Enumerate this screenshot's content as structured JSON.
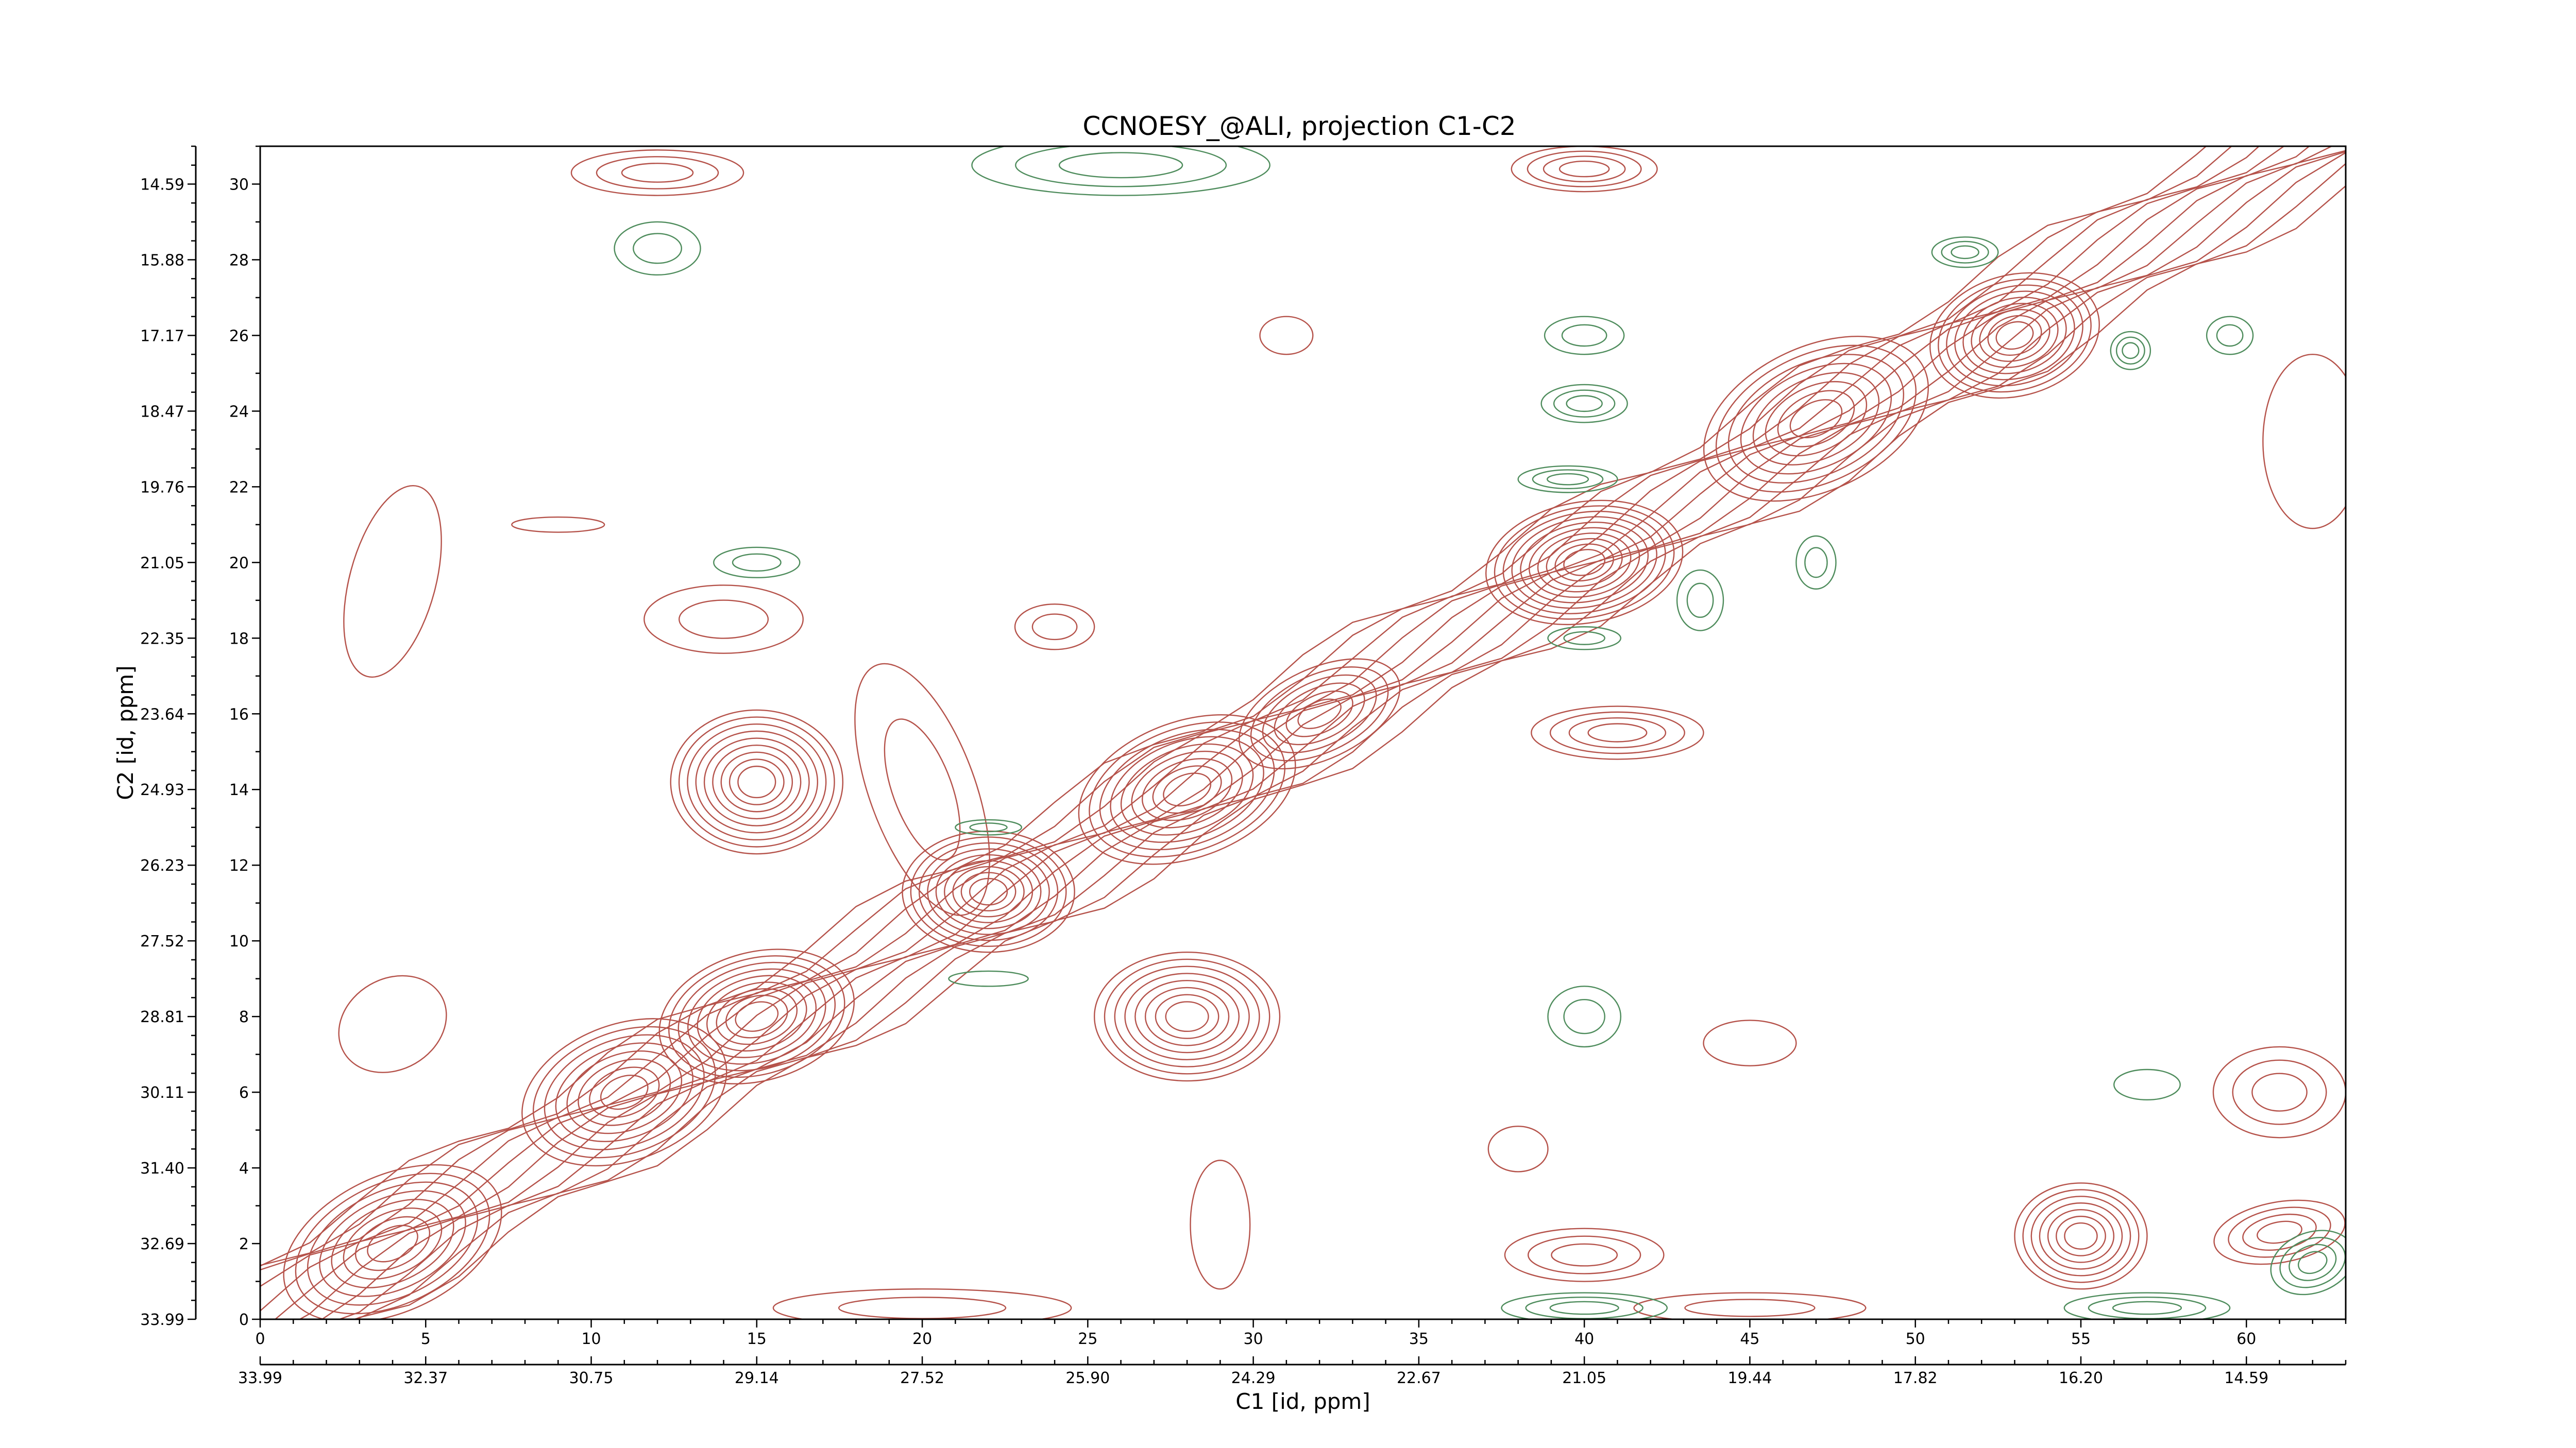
{
  "chart_data": {
    "type": "contour",
    "title": "CCNOESY_@ALI, projection C1-C2",
    "xlabel": "C1 [id, ppm]",
    "ylabel": "C2 [id, ppm]",
    "x_index_range": [
      0,
      63
    ],
    "y_index_range": [
      0,
      31
    ],
    "x_index_ticks": [
      "0",
      "5",
      "10",
      "15",
      "20",
      "25",
      "30",
      "35",
      "40",
      "45",
      "50",
      "55",
      "60"
    ],
    "x_ppm_ticks": [
      "33.99",
      "32.37",
      "30.75",
      "29.14",
      "27.52",
      "25.90",
      "24.29",
      "22.67",
      "21.05",
      "19.44",
      "17.82",
      "16.20",
      "14.59"
    ],
    "y_index_ticks": [
      "0",
      "2",
      "4",
      "6",
      "8",
      "10",
      "12",
      "14",
      "16",
      "18",
      "20",
      "22",
      "24",
      "26",
      "28",
      "30"
    ],
    "y_ppm_ticks": [
      "33.99",
      "32.69",
      "31.40",
      "30.11",
      "28.81",
      "27.52",
      "26.23",
      "24.93",
      "23.64",
      "22.35",
      "21.05",
      "19.76",
      "18.47",
      "17.17",
      "15.88",
      "14.59"
    ],
    "colors": {
      "positive": "#b5524a",
      "negative": "#4e8c5c"
    },
    "positive_peaks": [
      {
        "x": 4,
        "y": 2,
        "rx": 3.5,
        "ry": 1.8,
        "levels": 8,
        "angle": -25
      },
      {
        "x": 11,
        "y": 6,
        "rx": 3.2,
        "ry": 1.8,
        "levels": 8,
        "angle": -20
      },
      {
        "x": 15,
        "y": 8,
        "rx": 3.0,
        "ry": 1.7,
        "levels": 9,
        "angle": -15
      },
      {
        "x": 15,
        "y": 14.2,
        "rx": 2.6,
        "ry": 1.9,
        "levels": 9,
        "angle": 0
      },
      {
        "x": 22,
        "y": 11.3,
        "rx": 2.6,
        "ry": 1.6,
        "levels": 9,
        "angle": 0
      },
      {
        "x": 28,
        "y": 8,
        "rx": 2.8,
        "ry": 1.7,
        "levels": 8,
        "angle": 0
      },
      {
        "x": 28,
        "y": 14,
        "rx": 3.4,
        "ry": 1.8,
        "levels": 9,
        "angle": -20
      },
      {
        "x": 32,
        "y": 16,
        "rx": 2.6,
        "ry": 1.2,
        "levels": 6,
        "angle": -25
      },
      {
        "x": 40,
        "y": 20,
        "rx": 3.0,
        "ry": 1.6,
        "levels": 10,
        "angle": -10
      },
      {
        "x": 47,
        "y": 23.8,
        "rx": 3.6,
        "ry": 1.9,
        "levels": 8,
        "angle": -25
      },
      {
        "x": 53,
        "y": 26,
        "rx": 2.6,
        "ry": 1.6,
        "levels": 9,
        "angle": -15
      },
      {
        "x": 55,
        "y": 2.2,
        "rx": 2.0,
        "ry": 1.4,
        "levels": 7,
        "angle": 0
      },
      {
        "x": 40,
        "y": 1.7,
        "rx": 2.4,
        "ry": 0.7,
        "levels": 3,
        "angle": 0
      },
      {
        "x": 20,
        "y": 14,
        "rx": 1.6,
        "ry": 3.5,
        "levels": 2,
        "angle": -20
      },
      {
        "x": 4,
        "y": 19.5,
        "rx": 1.3,
        "ry": 2.6,
        "levels": 1,
        "angle": 15
      },
      {
        "x": 14,
        "y": 18.5,
        "rx": 2.4,
        "ry": 0.9,
        "levels": 2,
        "angle": 0
      },
      {
        "x": 41,
        "y": 15.5,
        "rx": 2.6,
        "ry": 0.7,
        "levels": 4,
        "angle": 0
      },
      {
        "x": 61,
        "y": 6,
        "rx": 2.0,
        "ry": 1.2,
        "levels": 3,
        "angle": 0
      },
      {
        "x": 38,
        "y": 4.5,
        "rx": 0.9,
        "ry": 0.6,
        "levels": 1,
        "angle": 0
      },
      {
        "x": 29,
        "y": 2.5,
        "rx": 0.9,
        "ry": 1.7,
        "levels": 1,
        "angle": 0
      },
      {
        "x": 45,
        "y": 7.3,
        "rx": 1.4,
        "ry": 0.6,
        "levels": 1,
        "angle": 0
      },
      {
        "x": 4,
        "y": 7.8,
        "rx": 1.7,
        "ry": 1.2,
        "levels": 1,
        "angle": -30
      },
      {
        "x": 9,
        "y": 21,
        "rx": 1.4,
        "ry": 0.2,
        "levels": 1,
        "angle": 0
      },
      {
        "x": 24,
        "y": 18.3,
        "rx": 1.2,
        "ry": 0.6,
        "levels": 2,
        "angle": 0
      },
      {
        "x": 61,
        "y": 2.3,
        "rx": 2.0,
        "ry": 0.8,
        "levels": 4,
        "angle": -10
      },
      {
        "x": 12,
        "y": 30.3,
        "rx": 2.6,
        "ry": 0.6,
        "levels": 3,
        "angle": 0
      },
      {
        "x": 40,
        "y": 30.4,
        "rx": 2.2,
        "ry": 0.6,
        "levels": 4,
        "angle": 0
      },
      {
        "x": 31,
        "y": 26,
        "rx": 0.8,
        "ry": 0.5,
        "levels": 1,
        "angle": 0
      },
      {
        "x": 62,
        "y": 23.2,
        "rx": 1.5,
        "ry": 2.3,
        "levels": 1,
        "angle": 0
      },
      {
        "x": 20,
        "y": 0.3,
        "rx": 4.5,
        "ry": 0.5,
        "levels": 2,
        "angle": 0
      },
      {
        "x": 45,
        "y": 0.3,
        "rx": 3.5,
        "ry": 0.4,
        "levels": 2,
        "angle": 0
      }
    ],
    "negative_peaks": [
      {
        "x": 12,
        "y": 28.3,
        "rx": 1.3,
        "ry": 0.7,
        "levels": 2,
        "angle": 0
      },
      {
        "x": 40,
        "y": 26,
        "rx": 1.2,
        "ry": 0.5,
        "levels": 2,
        "angle": 0
      },
      {
        "x": 40,
        "y": 24.2,
        "rx": 1.3,
        "ry": 0.5,
        "levels": 3,
        "angle": 0
      },
      {
        "x": 39.5,
        "y": 22.2,
        "rx": 1.5,
        "ry": 0.35,
        "levels": 3,
        "angle": 0
      },
      {
        "x": 15,
        "y": 20,
        "rx": 1.3,
        "ry": 0.4,
        "levels": 2,
        "angle": 0
      },
      {
        "x": 40,
        "y": 8,
        "rx": 1.1,
        "ry": 0.8,
        "levels": 2,
        "angle": 0
      },
      {
        "x": 57,
        "y": 6.2,
        "rx": 1.0,
        "ry": 0.4,
        "levels": 1,
        "angle": 0
      },
      {
        "x": 47,
        "y": 20,
        "rx": 0.6,
        "ry": 0.7,
        "levels": 2,
        "angle": 0
      },
      {
        "x": 43.5,
        "y": 19,
        "rx": 0.7,
        "ry": 0.8,
        "levels": 2,
        "angle": 0
      },
      {
        "x": 51.5,
        "y": 28.2,
        "rx": 1.0,
        "ry": 0.4,
        "levels": 3,
        "angle": 0
      },
      {
        "x": 56.5,
        "y": 25.6,
        "rx": 0.6,
        "ry": 0.5,
        "levels": 3,
        "angle": 0
      },
      {
        "x": 59.5,
        "y": 26,
        "rx": 0.7,
        "ry": 0.5,
        "levels": 2,
        "angle": 0
      },
      {
        "x": 22,
        "y": 13,
        "rx": 1.0,
        "ry": 0.2,
        "levels": 2,
        "angle": 0
      },
      {
        "x": 22,
        "y": 9,
        "rx": 1.2,
        "ry": 0.2,
        "levels": 1,
        "angle": 0
      },
      {
        "x": 40,
        "y": 18,
        "rx": 1.1,
        "ry": 0.3,
        "levels": 2,
        "angle": 0
      },
      {
        "x": 26,
        "y": 30.5,
        "rx": 4.5,
        "ry": 0.8,
        "levels": 3,
        "angle": 0
      },
      {
        "x": 40,
        "y": 0.3,
        "rx": 2.5,
        "ry": 0.4,
        "levels": 3,
        "angle": 0
      },
      {
        "x": 57,
        "y": 0.3,
        "rx": 2.5,
        "ry": 0.4,
        "levels": 3,
        "angle": 0
      },
      {
        "x": 62,
        "y": 1.5,
        "rx": 1.3,
        "ry": 0.8,
        "levels": 4,
        "angle": -20
      }
    ]
  }
}
